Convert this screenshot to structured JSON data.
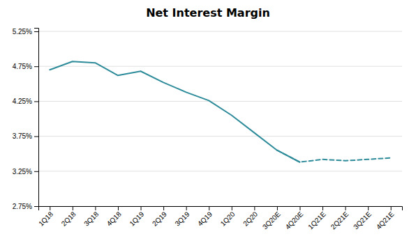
{
  "chart_data": {
    "type": "line",
    "title": "Net Interest Margin",
    "categories": [
      "1Q18",
      "2Q18",
      "3Q18",
      "4Q18",
      "1Q19",
      "2Q19",
      "3Q19",
      "4Q19",
      "1Q20",
      "2Q20",
      "3Q20E",
      "4Q20E",
      "1Q21E",
      "2Q21E",
      "3Q21E",
      "4Q21E"
    ],
    "series": [
      {
        "color": "#2e8b9a",
        "line_style": "solid",
        "values": [
          4.7,
          4.82,
          4.8,
          4.62,
          4.68,
          4.52,
          4.38,
          4.26,
          4.05,
          3.8,
          3.55,
          3.38,
          null,
          null,
          null,
          null
        ]
      },
      {
        "color": "#2e8b9a",
        "line_style": "dashed",
        "values": [
          null,
          null,
          null,
          null,
          null,
          null,
          null,
          null,
          null,
          null,
          3.55,
          3.38,
          3.42,
          3.4,
          3.42,
          3.44
        ]
      }
    ],
    "ylim": [
      2.75,
      5.3
    ],
    "yticks": [
      {
        "value": 2.75,
        "label": "2.75%"
      },
      {
        "value": 3.25,
        "label": "3.25%"
      },
      {
        "value": 3.75,
        "label": "3.75%"
      },
      {
        "value": 4.25,
        "label": "4.25%"
      },
      {
        "value": 4.75,
        "label": "4.75%"
      },
      {
        "value": 5.25,
        "label": "5.25%"
      }
    ],
    "grid": true
  }
}
